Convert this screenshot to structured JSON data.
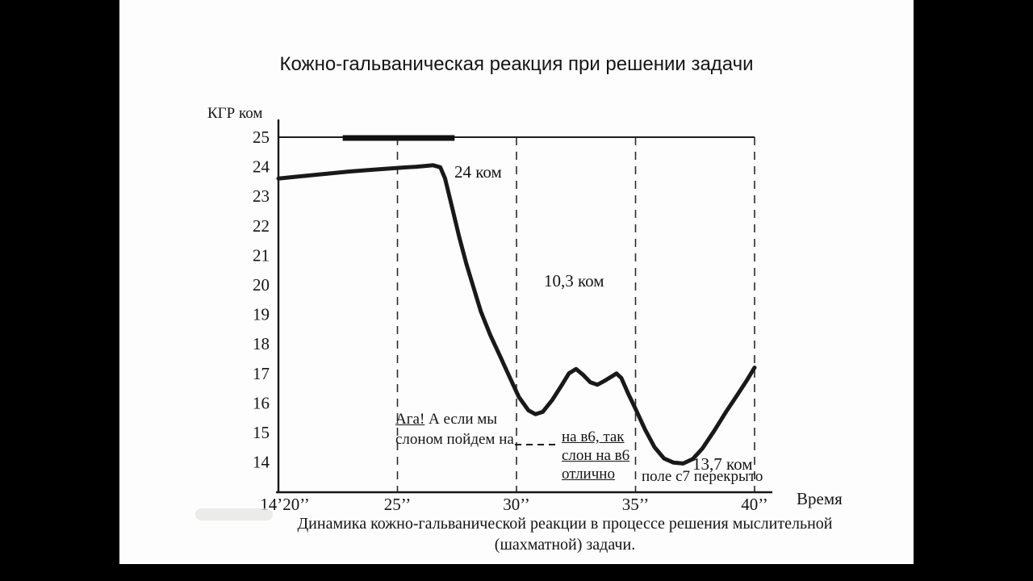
{
  "page": {
    "title": "Кожно-гальваническая реакция при решении задачи"
  },
  "chart_data": {
    "type": "line",
    "title": "Кожно-гальваническая реакция при решении задачи",
    "ylabel": "КГР ком",
    "xlabel": "Время",
    "ylim": [
      14,
      25
    ],
    "xlim_seconds": [
      20,
      41
    ],
    "grid": "dashed-vertical-only",
    "y_ticks": [
      25,
      24,
      23,
      22,
      21,
      20,
      19,
      18,
      17,
      16,
      15,
      14
    ],
    "x_ticks": [
      {
        "t": 20,
        "label": "14’20’’"
      },
      {
        "t": 25,
        "label": "25’’"
      },
      {
        "t": 30,
        "label": "30’’"
      },
      {
        "t": 35,
        "label": "35’’"
      },
      {
        "t": 40,
        "label": "40’’"
      }
    ],
    "dashed_vertical_lines_t": [
      25,
      30,
      35,
      40
    ],
    "top_reference_level": 25,
    "bold_top_segment": {
      "t_start": 22.7,
      "t_end": 27.4,
      "value": 25
    },
    "series": [
      {
        "name": "КГР (ком)",
        "points": [
          [
            20.0,
            23.6
          ],
          [
            21.0,
            23.68
          ],
          [
            22.0,
            23.76
          ],
          [
            23.0,
            23.84
          ],
          [
            24.0,
            23.9
          ],
          [
            25.0,
            23.96
          ],
          [
            25.8,
            24.0
          ],
          [
            26.5,
            24.05
          ],
          [
            26.8,
            23.98
          ],
          [
            27.0,
            23.6
          ],
          [
            27.3,
            22.6
          ],
          [
            27.6,
            21.6
          ],
          [
            27.9,
            20.7
          ],
          [
            28.2,
            19.9
          ],
          [
            28.5,
            19.1
          ],
          [
            28.9,
            18.3
          ],
          [
            29.3,
            17.6
          ],
          [
            29.7,
            16.9
          ],
          [
            30.1,
            16.2
          ],
          [
            30.5,
            15.75
          ],
          [
            30.8,
            15.62
          ],
          [
            31.1,
            15.7
          ],
          [
            31.5,
            16.1
          ],
          [
            31.9,
            16.6
          ],
          [
            32.2,
            17.0
          ],
          [
            32.5,
            17.15
          ],
          [
            32.8,
            16.95
          ],
          [
            33.1,
            16.7
          ],
          [
            33.4,
            16.62
          ],
          [
            33.7,
            16.75
          ],
          [
            34.0,
            16.9
          ],
          [
            34.2,
            17.0
          ],
          [
            34.4,
            16.85
          ],
          [
            34.7,
            16.3
          ],
          [
            35.0,
            15.8
          ],
          [
            35.4,
            15.1
          ],
          [
            35.8,
            14.5
          ],
          [
            36.2,
            14.12
          ],
          [
            36.6,
            13.98
          ],
          [
            37.0,
            13.95
          ],
          [
            37.4,
            14.1
          ],
          [
            37.8,
            14.45
          ],
          [
            38.3,
            15.05
          ],
          [
            38.8,
            15.7
          ],
          [
            39.3,
            16.3
          ],
          [
            39.7,
            16.8
          ],
          [
            40.0,
            17.2
          ]
        ]
      }
    ],
    "annotations": [
      {
        "text": "24 ком",
        "t": 27.6,
        "v": 23.9
      },
      {
        "text": "10,3 ком",
        "t": 31.3,
        "v": 20.1
      },
      {
        "text": "13,7 ком",
        "t": 37.6,
        "v": 13.9
      },
      {
        "underlined": "Ага!",
        "rest": " А если мы",
        "line2": "слоном пойдем на",
        "t": 25.0,
        "v": 15.4
      },
      {
        "lines": [
          "на в6, так",
          "слон на в6",
          "отлично"
        ],
        "underline": true,
        "t": 32.0,
        "v": 14.7
      },
      {
        "text": "поле с7 перекрыто",
        "t": 35.3,
        "v": 14.2
      }
    ]
  },
  "caption": {
    "line1": "Динамика кожно-гальванической реакции в процессе решения мыслительной",
    "line2": "(шахматной) задачи."
  }
}
